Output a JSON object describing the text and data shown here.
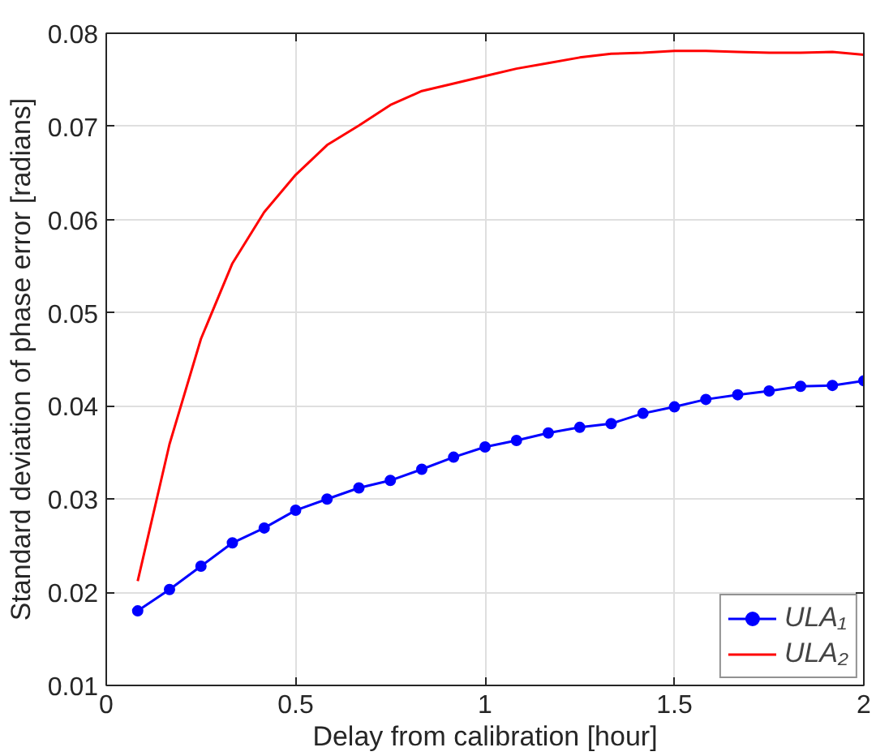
{
  "chart_data": {
    "type": "line",
    "xlabel": "Delay from calibration [hour]",
    "ylabel": "Standard deviation of phase error [radians]",
    "x": [
      0.083,
      0.167,
      0.25,
      0.333,
      0.417,
      0.5,
      0.583,
      0.667,
      0.75,
      0.833,
      0.917,
      1,
      1.083,
      1.167,
      1.25,
      1.333,
      1.417,
      1.5,
      1.583,
      1.667,
      1.75,
      1.833,
      1.917,
      2
    ],
    "series": [
      {
        "name": "ULA₁",
        "color": "#0000ff",
        "marker": "circle",
        "values": [
          0.018,
          0.0203,
          0.0228,
          0.0253,
          0.0269,
          0.0288,
          0.03,
          0.0312,
          0.032,
          0.0332,
          0.0345,
          0.0356,
          0.0363,
          0.0371,
          0.0377,
          0.0381,
          0.0392,
          0.0399,
          0.0407,
          0.0412,
          0.0416,
          0.0421,
          0.0422,
          0.0427
        ]
      },
      {
        "name": "ULA₂",
        "color": "#ff0000",
        "marker": "none",
        "values": [
          0.0212,
          0.0359,
          0.0472,
          0.0553,
          0.0608,
          0.0648,
          0.068,
          0.0701,
          0.0723,
          0.0738,
          0.0746,
          0.0754,
          0.0762,
          0.0768,
          0.0774,
          0.0778,
          0.0779,
          0.0781,
          0.0781,
          0.078,
          0.0779,
          0.0779,
          0.078,
          0.0777
        ]
      }
    ],
    "xlim": [
      0,
      2
    ],
    "ylim": [
      0.01,
      0.08
    ],
    "xticks": [
      0,
      0.5,
      1,
      1.5,
      2
    ],
    "yticks": [
      0.01,
      0.02,
      0.03,
      0.04,
      0.05,
      0.06,
      0.07,
      0.08
    ],
    "grid": true,
    "legend": "bottom right",
    "line_style": "solid"
  }
}
